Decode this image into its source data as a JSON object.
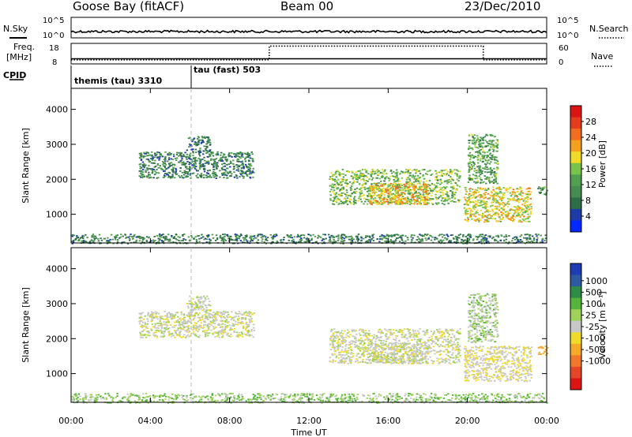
{
  "header": {
    "station": "Goose Bay (fitACF)",
    "beam": "Beam 00",
    "date": "23/Dec/2010"
  },
  "noise_panel": {
    "left_label": "N.Sky",
    "right_label": "N.Search",
    "left_ticks": [
      "10^5",
      "10^0"
    ],
    "right_ticks": [
      "10^5",
      "10^0"
    ]
  },
  "freq_panel": {
    "left_label_line1": "Freq.",
    "left_label_line2": "[MHz]",
    "right_label": "Nave",
    "left_ticks": [
      "18",
      "8"
    ],
    "right_ticks": [
      "60",
      "0"
    ],
    "freq_mhz": 10.5,
    "nave_segments": [
      {
        "from_hour": 0,
        "to_hour": 10,
        "value": 12
      },
      {
        "from_hour": 10,
        "to_hour": 20.8,
        "value": 52
      },
      {
        "from_hour": 20.8,
        "to_hour": 24,
        "value": 12
      }
    ]
  },
  "cpid": {
    "label": "CPID",
    "modes": [
      {
        "name": "themis (tau) 3310",
        "from_hour": 0,
        "to_hour": 5.9
      },
      {
        "name": "tau (fast) 503",
        "from_hour": 5.9,
        "to_hour": 24
      }
    ]
  },
  "x_axis": {
    "label": "Time UT",
    "ticks": [
      "00:00",
      "04:00",
      "08:00",
      "12:00",
      "16:00",
      "20:00",
      "00:00"
    ],
    "range_hours": [
      0,
      24
    ]
  },
  "power_panel": {
    "ylabel": "Slant Range [km]",
    "yticks": [
      "1000",
      "2000",
      "3000",
      "4000"
    ],
    "ylim": [
      180,
      4600
    ],
    "colorbar_label": "Power [dB]",
    "colorbar_ticks": [
      "4",
      "8",
      "12",
      "16",
      "20",
      "24",
      "28"
    ],
    "colorbar_colors": [
      "#0028ff",
      "#1e3ca8",
      "#2d6e46",
      "#468c50",
      "#50a050",
      "#78c34b",
      "#f0dc28",
      "#f5a01e",
      "#f06e1e",
      "#e63c1e",
      "#dc1414"
    ]
  },
  "velocity_panel": {
    "ylabel": "Slant Range [km]",
    "yticks": [
      "1000",
      "2000",
      "3000",
      "4000"
    ],
    "ylim": [
      180,
      4600
    ],
    "colorbar_label": "Velocity  [m s⁻¹]",
    "colorbar_ticks": [
      "1000",
      "500",
      "100",
      "25",
      "-25",
      "-100",
      "-500",
      "-1000"
    ],
    "colorbar_colors": [
      "#1e3cb4",
      "#2d5aa0",
      "#2d8c46",
      "#55b43c",
      "#9ed25a",
      "#c8c8c8",
      "#f0dc28",
      "#f5aa28",
      "#f07828",
      "#e64628",
      "#dc1414"
    ]
  },
  "chart_data": {
    "type": "heatmap",
    "title": "Goose Bay (fitACF)   Beam 00   23/Dec/2010",
    "xlabel": "Time UT",
    "ylabel": "Slant Range [km]",
    "xlim": [
      0,
      24
    ],
    "ylim": [
      180,
      4600
    ],
    "panels": [
      "Power [dB]",
      "Velocity [m s^-1]"
    ],
    "echo_regions": [
      {
        "t_start": 3.4,
        "t_end": 9.2,
        "range_start": 2050,
        "range_end": 2800,
        "power_db": 8,
        "velocity": 0
      },
      {
        "t_start": 5.8,
        "t_end": 7.0,
        "range_start": 2800,
        "range_end": 3250,
        "power_db": 6,
        "velocity": 0
      },
      {
        "t_start": 13.0,
        "t_end": 19.6,
        "range_start": 1300,
        "range_end": 2300,
        "power_db": 14,
        "velocity": 0
      },
      {
        "t_start": 15.0,
        "t_end": 18.0,
        "range_start": 1300,
        "range_end": 1900,
        "power_db": 20,
        "velocity": 0
      },
      {
        "t_start": 19.8,
        "t_end": 23.2,
        "range_start": 800,
        "range_end": 1800,
        "power_db": 18,
        "velocity": -20
      },
      {
        "t_start": 20.0,
        "t_end": 21.5,
        "range_start": 1900,
        "range_end": 3300,
        "power_db": 12,
        "velocity": 30
      },
      {
        "t_start": 0,
        "t_end": 24,
        "range_start": 180,
        "range_end": 450,
        "power_db": 8,
        "velocity": 50
      },
      {
        "t_start": 23.5,
        "t_end": 24,
        "range_start": 1550,
        "range_end": 1800,
        "power_db": 10,
        "velocity": -200
      }
    ]
  }
}
